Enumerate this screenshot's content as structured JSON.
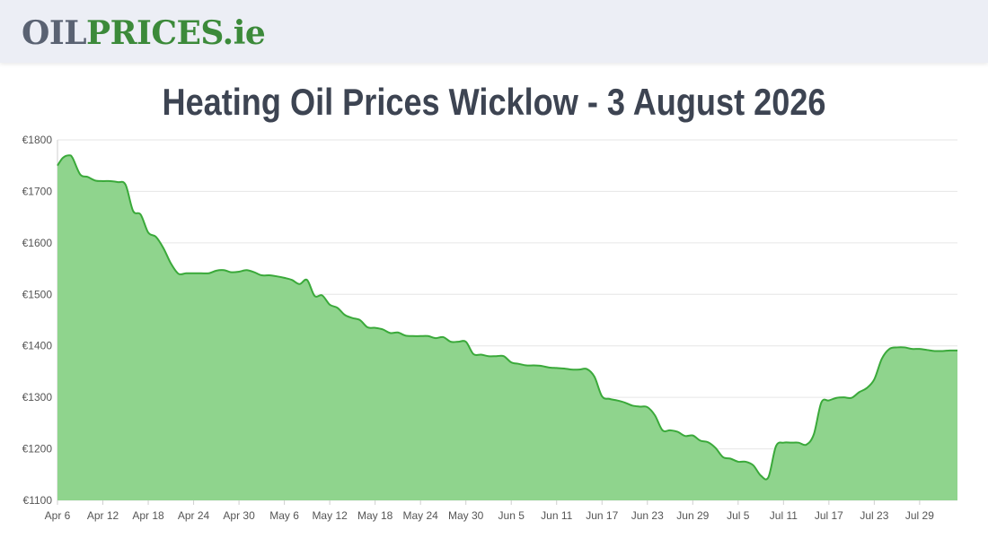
{
  "header": {
    "logo_part_a": "OIL",
    "logo_part_b": "PRICES",
    "logo_part_c": ".ie"
  },
  "colors": {
    "header_bg": "#eceef5",
    "line": "#3aa93a",
    "fill": "#8fd48d",
    "grid": "#e6e6e6",
    "title": "#3d4452"
  },
  "chart_data": {
    "type": "area",
    "title": "Heating Oil Prices Wicklow - 3 August 2026",
    "xlabel": "",
    "ylabel": "",
    "grid": true,
    "ylim": [
      1100,
      1800
    ],
    "yticks": [
      1100,
      1200,
      1300,
      1400,
      1500,
      1600,
      1700,
      1800
    ],
    "ytick_labels": [
      "€1100",
      "€1200",
      "€1300",
      "€1400",
      "€1500",
      "€1600",
      "€1700",
      "€1800"
    ],
    "xticks": [
      {
        "day": 0,
        "label": "Apr 6"
      },
      {
        "day": 6,
        "label": "Apr 12"
      },
      {
        "day": 12,
        "label": "Apr 18"
      },
      {
        "day": 18,
        "label": "Apr 24"
      },
      {
        "day": 24,
        "label": "Apr 30"
      },
      {
        "day": 30,
        "label": "May 6"
      },
      {
        "day": 36,
        "label": "May 12"
      },
      {
        "day": 42,
        "label": "May 18"
      },
      {
        "day": 48,
        "label": "May 24"
      },
      {
        "day": 54,
        "label": "May 30"
      },
      {
        "day": 60,
        "label": "Jun 5"
      },
      {
        "day": 66,
        "label": "Jun 11"
      },
      {
        "day": 72,
        "label": "Jun 17"
      },
      {
        "day": 78,
        "label": "Jun 23"
      },
      {
        "day": 84,
        "label": "Jun 29"
      },
      {
        "day": 90,
        "label": "Jul 5"
      },
      {
        "day": 96,
        "label": "Jul 11"
      },
      {
        "day": 102,
        "label": "Jul 17"
      },
      {
        "day": 108,
        "label": "Jul 23"
      },
      {
        "day": 114,
        "label": "Jul 29"
      }
    ],
    "x_max_day": 119,
    "series": [
      {
        "points": [
          [
            0,
            1750
          ],
          [
            0.7,
            1765
          ],
          [
            1.5,
            1770
          ],
          [
            2,
            1765
          ],
          [
            3,
            1733
          ],
          [
            4,
            1728
          ],
          [
            5,
            1721
          ],
          [
            6,
            1720
          ],
          [
            7,
            1720
          ],
          [
            8,
            1718
          ],
          [
            9,
            1713
          ],
          [
            10,
            1662
          ],
          [
            11,
            1655
          ],
          [
            12,
            1620
          ],
          [
            13,
            1612
          ],
          [
            14,
            1590
          ],
          [
            15,
            1560
          ],
          [
            16,
            1540
          ],
          [
            17,
            1541
          ],
          [
            18,
            1541
          ],
          [
            19,
            1541
          ],
          [
            20,
            1541
          ],
          [
            21,
            1546
          ],
          [
            22,
            1547
          ],
          [
            23,
            1543
          ],
          [
            24,
            1544
          ],
          [
            25,
            1547
          ],
          [
            26,
            1543
          ],
          [
            27,
            1537
          ],
          [
            28,
            1537
          ],
          [
            29,
            1535
          ],
          [
            30,
            1532
          ],
          [
            31,
            1528
          ],
          [
            32,
            1520
          ],
          [
            33,
            1528
          ],
          [
            34,
            1497
          ],
          [
            35,
            1498
          ],
          [
            36,
            1480
          ],
          [
            37,
            1474
          ],
          [
            38,
            1460
          ],
          [
            39,
            1454
          ],
          [
            40,
            1450
          ],
          [
            41,
            1436
          ],
          [
            42,
            1435
          ],
          [
            43,
            1432
          ],
          [
            44,
            1425
          ],
          [
            45,
            1426
          ],
          [
            46,
            1420
          ],
          [
            47,
            1419
          ],
          [
            48,
            1419
          ],
          [
            49,
            1419
          ],
          [
            50,
            1415
          ],
          [
            51,
            1417
          ],
          [
            52,
            1408
          ],
          [
            53,
            1408
          ],
          [
            54,
            1408
          ],
          [
            55,
            1384
          ],
          [
            56,
            1383
          ],
          [
            57,
            1380
          ],
          [
            58,
            1380
          ],
          [
            59,
            1380
          ],
          [
            60,
            1368
          ],
          [
            61,
            1365
          ],
          [
            62,
            1362
          ],
          [
            63,
            1362
          ],
          [
            64,
            1361
          ],
          [
            65,
            1358
          ],
          [
            66,
            1357
          ],
          [
            67,
            1356
          ],
          [
            68,
            1354
          ],
          [
            69,
            1354
          ],
          [
            70,
            1355
          ],
          [
            71,
            1340
          ],
          [
            72,
            1302
          ],
          [
            73,
            1297
          ],
          [
            74,
            1294
          ],
          [
            75,
            1290
          ],
          [
            76,
            1284
          ],
          [
            77,
            1282
          ],
          [
            78,
            1281
          ],
          [
            79,
            1265
          ],
          [
            80,
            1236
          ],
          [
            81,
            1236
          ],
          [
            82,
            1233
          ],
          [
            83,
            1225
          ],
          [
            84,
            1226
          ],
          [
            85,
            1216
          ],
          [
            86,
            1213
          ],
          [
            87,
            1202
          ],
          [
            88,
            1184
          ],
          [
            89,
            1181
          ],
          [
            90,
            1175
          ],
          [
            91,
            1175
          ],
          [
            92,
            1168
          ],
          [
            93,
            1148
          ],
          [
            94,
            1145
          ],
          [
            95,
            1205
          ],
          [
            96,
            1212
          ],
          [
            97,
            1212
          ],
          [
            98,
            1212
          ],
          [
            99,
            1208
          ],
          [
            100,
            1228
          ],
          [
            101,
            1290
          ],
          [
            102,
            1294
          ],
          [
            103,
            1299
          ],
          [
            104,
            1300
          ],
          [
            105,
            1299
          ],
          [
            106,
            1310
          ],
          [
            107,
            1318
          ],
          [
            108,
            1335
          ],
          [
            109,
            1375
          ],
          [
            110,
            1394
          ],
          [
            111,
            1397
          ],
          [
            112,
            1397
          ],
          [
            113,
            1394
          ],
          [
            114,
            1394
          ],
          [
            115,
            1392
          ],
          [
            116,
            1390
          ],
          [
            117,
            1390
          ],
          [
            118,
            1391
          ],
          [
            119,
            1391
          ]
        ]
      }
    ]
  }
}
